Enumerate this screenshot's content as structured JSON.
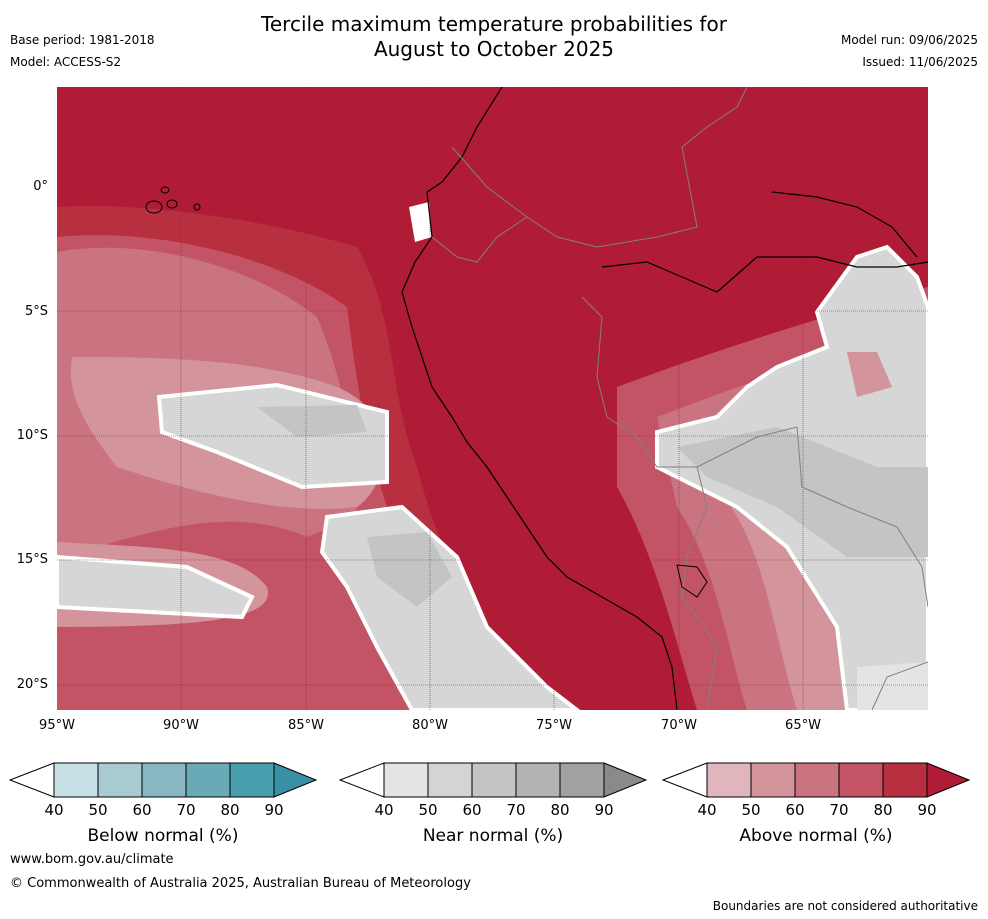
{
  "title_line1": "Tercile maximum temperature probabilities for",
  "title_line2": "August to October 2025",
  "base_period": "Base period: 1981-2018",
  "model": "Model: ACCESS-S2",
  "model_run": "Model run: 09/06/2025",
  "issued": "Issued: 11/06/2025",
  "lat_labels": [
    "0°",
    "5°S",
    "10°S",
    "15°S",
    "20°S"
  ],
  "lon_labels": [
    "95°W",
    "90°W",
    "85°W",
    "80°W",
    "75°W",
    "70°W",
    "65°W"
  ],
  "colorbars": [
    {
      "label": "Below normal (%)",
      "ticks": [
        "40",
        "50",
        "60",
        "70",
        "80",
        "90"
      ],
      "colors": [
        "#ffffff",
        "#c8e1e6",
        "#a8cbd1",
        "#89b7c1",
        "#6aaab6",
        "#4a9fae",
        "#3790a3"
      ]
    },
    {
      "label": "Near normal (%)",
      "ticks": [
        "40",
        "50",
        "60",
        "70",
        "80",
        "90"
      ],
      "colors": [
        "#ffffff",
        "#e4e4e4",
        "#d4d4d4",
        "#c4c4c4",
        "#b4b4b4",
        "#a2a2a2",
        "#8a8a8a"
      ]
    },
    {
      "label": "Above normal (%)",
      "ticks": [
        "40",
        "50",
        "60",
        "70",
        "80",
        "90"
      ],
      "colors": [
        "#ffffff",
        "#e0b6bc",
        "#d3949c",
        "#c97480",
        "#c35466",
        "#b8303f",
        "#b01c36"
      ]
    }
  ],
  "website": "www.bom.gov.au/climate",
  "copyright": "© Commonwealth of Australia 2025, Australian Bureau of Meteorology",
  "disclaimer": "Boundaries are not considered authoritative"
}
